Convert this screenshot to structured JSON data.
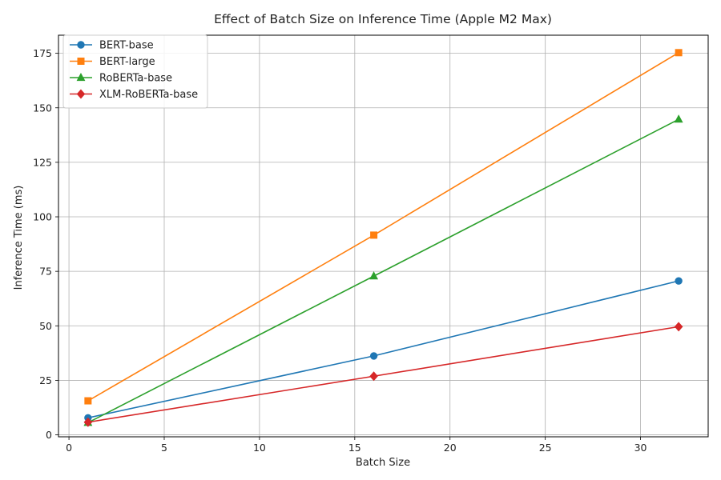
{
  "chart_data": {
    "type": "line",
    "title": "Effect of Batch Size on Inference Time (Apple M2 Max)",
    "xlabel": "Batch Size",
    "ylabel": "Inference Time (ms)",
    "xlim": [
      -0.55,
      33.55
    ],
    "ylim": [
      -0.9,
      183.3
    ],
    "xticks": [
      0,
      5,
      10,
      15,
      20,
      25,
      30
    ],
    "yticks": [
      0,
      25,
      50,
      75,
      100,
      125,
      150,
      175
    ],
    "grid": true,
    "legend_position": "top-left",
    "x": [
      1,
      16,
      32
    ],
    "series": [
      {
        "name": "BERT-base",
        "values": [
          7.8,
          36.2,
          70.6
        ],
        "color": "#1f77b4",
        "marker": "circle"
      },
      {
        "name": "BERT-large",
        "values": [
          15.6,
          91.6,
          175.3
        ],
        "color": "#ff7f0e",
        "marker": "square"
      },
      {
        "name": "RoBERTa-base",
        "values": [
          5.6,
          72.8,
          144.7
        ],
        "color": "#2ca02c",
        "marker": "triangle"
      },
      {
        "name": "XLM-RoBERTa-base",
        "values": [
          5.8,
          26.9,
          49.6
        ],
        "color": "#d62728",
        "marker": "diamond"
      }
    ]
  }
}
